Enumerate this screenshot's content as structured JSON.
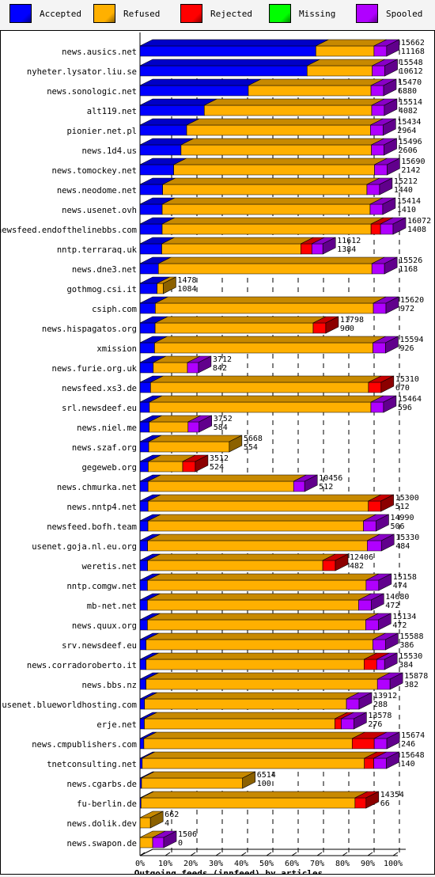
{
  "chart_data": {
    "type": "bar",
    "title": "",
    "xlabel": "Outgoing feeds (innfeed) by articles",
    "ylabel": "",
    "xlim": [
      0,
      100
    ],
    "x_ticks": [
      "0%",
      "10%",
      "20%",
      "30%",
      "40%",
      "50%",
      "60%",
      "70%",
      "80%",
      "90%",
      "100%"
    ],
    "legend": [
      {
        "name": "Accepted",
        "color": "#0000ff"
      },
      {
        "name": "Refused",
        "color": "#ffb000"
      },
      {
        "name": "Rejected",
        "color": "#ff0000"
      },
      {
        "name": "Missing",
        "color": "#00ff00"
      },
      {
        "name": "Spooled",
        "color": "#b000ff"
      }
    ],
    "categories": [
      "news.ausics.net",
      "nyheter.lysator.liu.se",
      "news.sonologic.net",
      "alt119.net",
      "pionier.net.pl",
      "news.1d4.us",
      "news.tomockey.net",
      "news.neodome.net",
      "news.usenet.ovh",
      "newsfeed.endofthelinebbs.com",
      "nntp.terraraq.uk",
      "news.dne3.net",
      "gothmog.csi.it",
      "csiph.com",
      "news.hispagatos.org",
      "xmission",
      "news.furie.org.uk",
      "newsfeed.xs3.de",
      "srl.newsdeef.eu",
      "news.niel.me",
      "news.szaf.org",
      "gegeweb.org",
      "news.chmurka.net",
      "news.nntp4.net",
      "newsfeed.bofh.team",
      "usenet.goja.nl.eu.org",
      "weretis.net",
      "nntp.comgw.net",
      "mb-net.net",
      "news.quux.org",
      "srv.newsdeef.eu",
      "news.corradoroberto.it",
      "news.bbs.nz",
      "usenet.blueworldhosting.com",
      "erje.net",
      "news.cmpublishers.com",
      "tnetconsulting.net",
      "news.cgarbs.de",
      "fu-berlin.de",
      "news.dolik.dev",
      "news.swapon.de"
    ],
    "offered": [
      15662,
      15548,
      15470,
      15514,
      15434,
      15496,
      15690,
      15212,
      15414,
      16072,
      11612,
      15526,
      1478,
      15620,
      11798,
      15594,
      3712,
      15310,
      15464,
      3752,
      5668,
      3512,
      10456,
      15300,
      14990,
      15330,
      12406,
      15158,
      14680,
      15134,
      15588,
      15530,
      15878,
      13912,
      13578,
      15674,
      15648,
      6514,
      14354,
      662,
      1506
    ],
    "accepted": [
      11168,
      10612,
      6880,
      4082,
      2964,
      2606,
      2142,
      1440,
      1410,
      1408,
      1384,
      1168,
      1084,
      972,
      960,
      926,
      842,
      670,
      596,
      584,
      554,
      524,
      512,
      512,
      506,
      484,
      482,
      474,
      472,
      472,
      386,
      384,
      382,
      288,
      276,
      246,
      140,
      100,
      66,
      4,
      0
    ],
    "rejected": [
      0,
      0,
      0,
      0,
      0,
      0,
      0,
      0,
      0,
      600,
      700,
      0,
      0,
      0,
      800,
      0,
      0,
      800,
      0,
      0,
      0,
      800,
      0,
      800,
      0,
      0,
      800,
      0,
      0,
      0,
      0,
      800,
      0,
      0,
      400,
      1400,
      600,
      0,
      700,
      0,
      0
    ],
    "spooled": [
      800,
      800,
      800,
      800,
      800,
      800,
      800,
      800,
      800,
      800,
      700,
      800,
      0,
      800,
      0,
      800,
      700,
      0,
      800,
      700,
      0,
      0,
      700,
      0,
      800,
      900,
      0,
      800,
      800,
      800,
      800,
      500,
      800,
      800,
      800,
      800,
      800,
      0,
      0,
      0,
      700
    ],
    "max_offered": 16072
  }
}
